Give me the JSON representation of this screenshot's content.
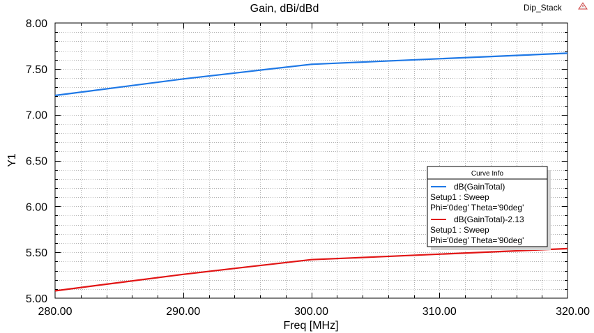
{
  "window": {
    "title": "Gain, dBi/dBd",
    "project_label": "Dip_Stack"
  },
  "chart_data": {
    "type": "line",
    "title": "Gain, dBi/dBd",
    "xlabel": "Freq [MHz]",
    "ylabel": "Y1",
    "xlim": [
      280,
      320
    ],
    "ylim": [
      5.0,
      8.0
    ],
    "x_ticks": [
      "280.00",
      "290.00",
      "300.00",
      "310.00",
      "320.00"
    ],
    "y_ticks": [
      "5.00",
      "5.50",
      "6.00",
      "6.50",
      "7.00",
      "7.50",
      "8.00"
    ],
    "grid": true,
    "legend": {
      "title": "Curve Info",
      "placement": "center-right"
    },
    "series": [
      {
        "name": "dB(GainTotal)",
        "setup": "Setup1 : Sweep",
        "params": "Phi='0deg' Theta='90deg'",
        "color": "#1e78e6",
        "x": [
          280,
          285,
          290,
          295,
          300,
          305,
          310,
          315,
          320
        ],
        "values": [
          7.21,
          7.3,
          7.39,
          7.47,
          7.55,
          7.58,
          7.61,
          7.64,
          7.67
        ]
      },
      {
        "name": "dB(GainTotal)-2.13",
        "setup": "Setup1 : Sweep",
        "params": "Phi='0deg' Theta='90deg'",
        "color": "#e11414",
        "x": [
          280,
          285,
          290,
          295,
          300,
          305,
          310,
          315,
          320
        ],
        "values": [
          5.08,
          5.17,
          5.26,
          5.34,
          5.42,
          5.45,
          5.48,
          5.51,
          5.54
        ]
      }
    ]
  }
}
